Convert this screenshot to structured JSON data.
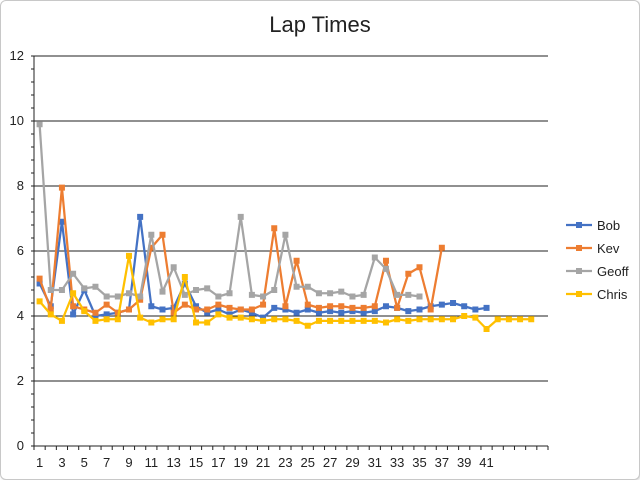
{
  "chart_data": {
    "type": "line",
    "title": "Lap Times",
    "xlabel": "",
    "ylabel": "",
    "ylim": [
      0,
      12
    ],
    "y_ticks": [
      0,
      2,
      4,
      6,
      8,
      10,
      12
    ],
    "x_tick_labels": [
      1,
      3,
      5,
      7,
      9,
      11,
      13,
      15,
      17,
      19,
      21,
      23,
      25,
      27,
      29,
      31,
      33,
      35,
      37,
      39,
      41
    ],
    "x_slots": 46,
    "grid": "horizontal",
    "legend_position": "right",
    "series": [
      {
        "name": "Bob",
        "color": "#4472C4",
        "marker": "square",
        "values": [
          5.0,
          4.3,
          6.9,
          4.05,
          4.8,
          4.0,
          4.05,
          4.1,
          4.2,
          7.05,
          4.3,
          4.2,
          4.25,
          5.0,
          4.3,
          4.1,
          4.2,
          4.05,
          4.2,
          4.1,
          3.95,
          4.25,
          4.2,
          4.1,
          4.2,
          4.1,
          4.15,
          4.1,
          4.15,
          4.1,
          4.15,
          4.3,
          4.25,
          4.15,
          4.2,
          4.3,
          4.35,
          4.4,
          4.3,
          4.2,
          4.25
        ]
      },
      {
        "name": "Kev",
        "color": "#ED7D31",
        "marker": "square",
        "values": [
          5.15,
          4.2,
          7.95,
          4.3,
          4.2,
          4.1,
          4.35,
          4.1,
          4.2,
          4.5,
          6.1,
          6.5,
          4.1,
          4.35,
          4.2,
          4.2,
          4.35,
          4.25,
          4.2,
          4.2,
          4.35,
          6.7,
          4.3,
          5.7,
          4.35,
          4.25,
          4.3,
          4.3,
          4.25,
          4.25,
          4.3,
          5.7,
          4.25,
          5.3,
          5.5,
          4.2,
          6.1
        ]
      },
      {
        "name": "Geoff",
        "color": "#A5A5A5",
        "marker": "square",
        "values": [
          9.9,
          4.8,
          4.8,
          5.3,
          4.85,
          4.9,
          4.6,
          4.6,
          4.7,
          4.6,
          6.5,
          4.75,
          5.5,
          4.65,
          4.8,
          4.85,
          4.6,
          4.7,
          7.05,
          4.65,
          4.6,
          4.8,
          6.5,
          4.9,
          4.9,
          4.7,
          4.7,
          4.75,
          4.6,
          4.65,
          5.8,
          5.45,
          4.65,
          4.65,
          4.6
        ]
      },
      {
        "name": "Chris",
        "color": "#FFC000",
        "marker": "square",
        "values": [
          4.45,
          4.05,
          3.85,
          4.7,
          4.15,
          3.85,
          3.9,
          3.9,
          5.85,
          3.95,
          3.8,
          3.9,
          3.9,
          5.2,
          3.8,
          3.8,
          4.05,
          3.95,
          3.95,
          3.9,
          3.85,
          3.9,
          3.9,
          3.85,
          3.7,
          3.85,
          3.85,
          3.85,
          3.85,
          3.85,
          3.85,
          3.8,
          3.9,
          3.85,
          3.9,
          3.9,
          3.9,
          3.9,
          4.0,
          3.95,
          3.6,
          3.9,
          3.9,
          3.9,
          3.9
        ]
      }
    ]
  }
}
